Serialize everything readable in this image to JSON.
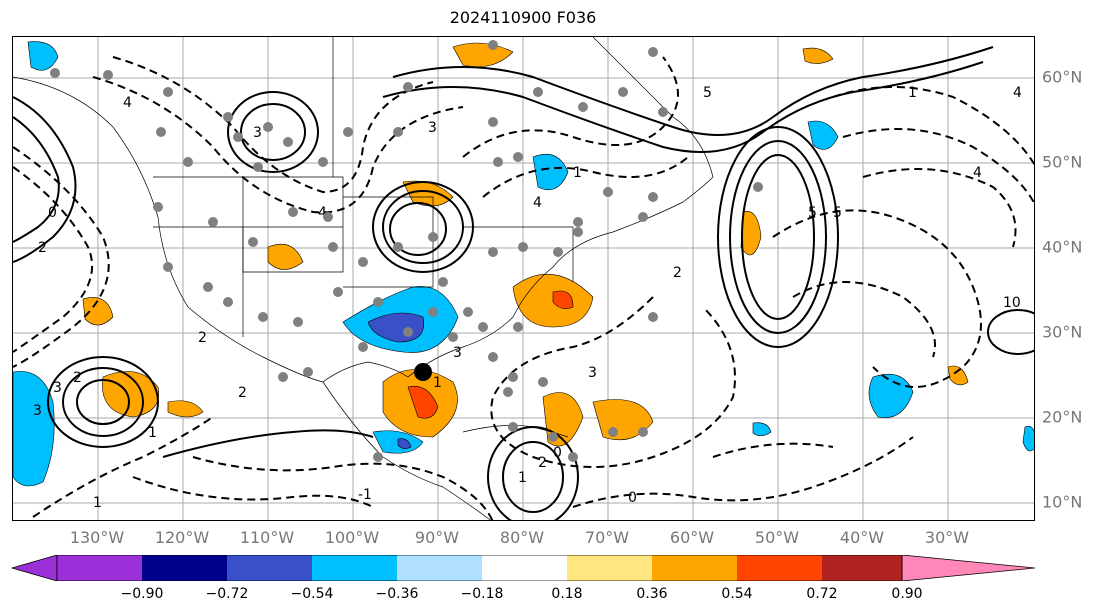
{
  "title": "2024110900 F036",
  "lon_labels": [
    "130°W",
    "120°W",
    "110°W",
    "100°W",
    "90°W",
    "80°W",
    "70°W",
    "60°W",
    "50°W",
    "40°W",
    "30°W"
  ],
  "lat_labels": [
    "60°N",
    "50°N",
    "40°N",
    "30°N",
    "20°N",
    "10°N"
  ],
  "colorbar": {
    "ticks": [
      "−0.90",
      "−0.72",
      "−0.54",
      "−0.36",
      "−0.18",
      "0.18",
      "0.36",
      "0.54",
      "0.72",
      "0.90"
    ],
    "colors": {
      "under": "#9b30d9",
      "bins": [
        "#00008b",
        "#3a50c8",
        "#00bfff",
        "#b0e2ff",
        "#ffffff",
        "#ffe680",
        "#ffa500",
        "#ff4500",
        "#b22222"
      ],
      "over": "#ff88b8"
    }
  },
  "contour_labels": [
    "1",
    "2",
    "3",
    "4",
    "5",
    "1",
    "2",
    "3",
    "4",
    "5",
    "1",
    "2",
    "3",
    "4",
    "0",
    "1",
    "2",
    "3",
    "4",
    "-1",
    "0",
    "1",
    "2",
    "3",
    "1",
    "2",
    "3",
    "4",
    "5",
    "10",
    "0"
  ]
}
